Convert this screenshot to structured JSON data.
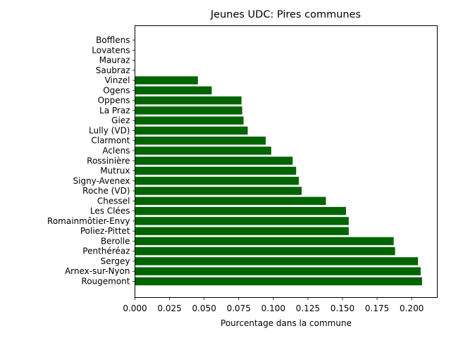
{
  "chart_data": {
    "type": "bar",
    "orientation": "horizontal",
    "title": "Jeunes UDC: Pires communes",
    "xlabel": "Pourcentage dans la commune",
    "ylabel": "",
    "xlim": [
      0.0,
      0.2185
    ],
    "xticks": [
      "0.000",
      "0.025",
      "0.050",
      "0.075",
      "0.100",
      "0.125",
      "0.150",
      "0.175",
      "0.200"
    ],
    "grid": false,
    "bar_color": "#006400",
    "categories": [
      "Rougemont",
      "Arnex-sur-Nyon",
      "Sergey",
      "Penthéréaz",
      "Berolle",
      "Poliez-Pittet",
      "Romainmôtier-Envy",
      "Les Clées",
      "Chessel",
      "Roche (VD)",
      "Signy-Avenex",
      "Mutrux",
      "Rossinière",
      "Aclens",
      "Clarmont",
      "Lully (VD)",
      "Giez",
      "La Praz",
      "Oppens",
      "Ogens",
      "Vinzel",
      "Saubraz",
      "Mauraz",
      "Lovatens",
      "Bofflens"
    ],
    "values": [
      0.2075,
      0.2065,
      0.2045,
      0.188,
      0.187,
      0.1545,
      0.1545,
      0.1525,
      0.138,
      0.1205,
      0.1185,
      0.1165,
      0.114,
      0.0985,
      0.0945,
      0.0815,
      0.0785,
      0.0775,
      0.077,
      0.0555,
      0.0455,
      0.0,
      0.0,
      0.0,
      0.0
    ]
  }
}
